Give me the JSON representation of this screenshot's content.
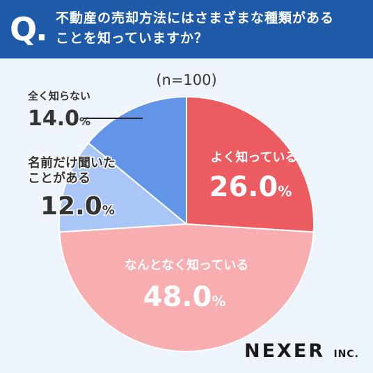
{
  "header": {
    "q_mark": "Q.",
    "title_line1": "不動産の売却方法にはさまざまな種類がある",
    "title_line2": "ことを知っていますか？"
  },
  "colors": {
    "header_bg": "#1e5aa8",
    "slice_1": "#ec5b60",
    "slice_2": "#f8aeb0",
    "slice_3": "#a9c6f6",
    "slice_4": "#6295e8"
  },
  "chart_data": {
    "type": "pie",
    "annotation": "(n=100)",
    "slices": [
      {
        "label": "よく知っている",
        "value": 26.0,
        "display": "26.0",
        "color": "#ec5b60"
      },
      {
        "label": "なんとなく知っている",
        "value": 48.0,
        "display": "48.0",
        "color": "#f8aeb0"
      },
      {
        "label_lines": [
          "名前だけ聞いた",
          "ことがある"
        ],
        "value": 12.0,
        "display": "12.0",
        "color": "#a9c6f6"
      },
      {
        "label": "全く知らない",
        "value": 14.0,
        "display": "14.0",
        "color": "#6295e8"
      }
    ],
    "unit": "%",
    "start": "12 o'clock",
    "direction": "clockwise"
  },
  "logo": {
    "main": "NEXER",
    "suffix": "INC."
  }
}
